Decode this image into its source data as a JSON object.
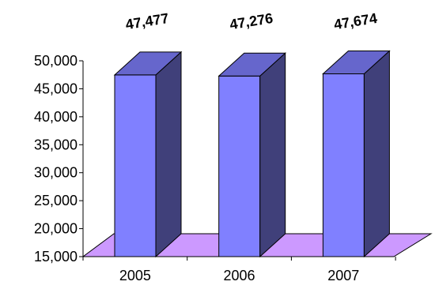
{
  "chart_data": {
    "type": "bar",
    "style": "3d-column",
    "title": "",
    "xlabel": "",
    "ylabel": "",
    "categories": [
      "2005",
      "2006",
      "2007"
    ],
    "values": [
      47477,
      47276,
      47674
    ],
    "data_labels": [
      "47,477",
      "47,276",
      "47,674"
    ],
    "ylim": [
      15000,
      50000
    ],
    "y_ticks": [
      15000,
      20000,
      25000,
      30000,
      35000,
      40000,
      45000,
      50000
    ],
    "y_tick_labels": [
      "15,000",
      "20,000",
      "25,000",
      "30,000",
      "35,000",
      "40,000",
      "45,000",
      "50,000"
    ],
    "grid": false,
    "legend": "none",
    "colors": {
      "bar_front": "#8080ff",
      "bar_top": "#6666cc",
      "bar_side": "#40407a",
      "floor": "#cc99ff",
      "axis": "#000000"
    }
  }
}
